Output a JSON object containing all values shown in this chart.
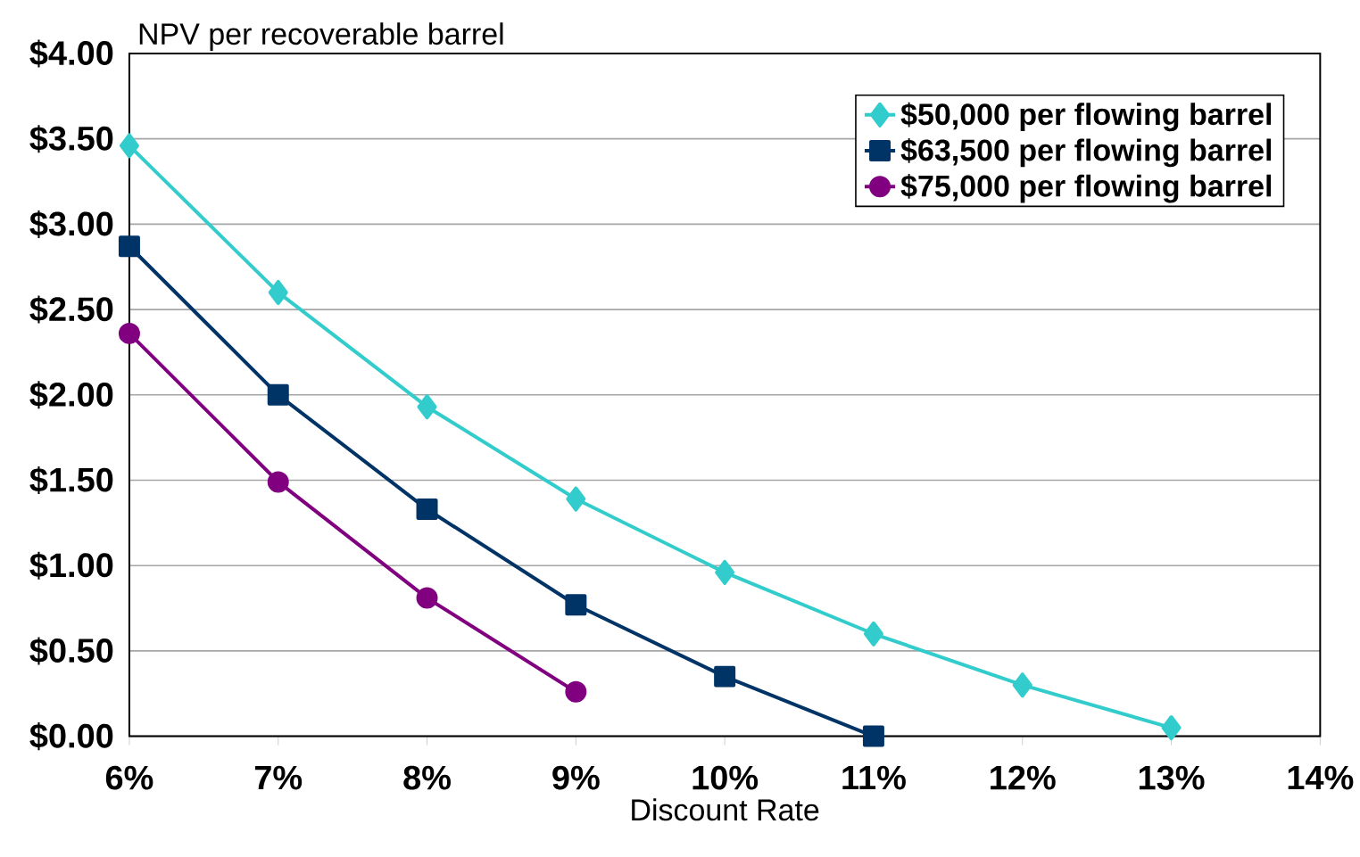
{
  "chart_data": {
    "type": "line",
    "xlabel": "Discount Rate",
    "ylabel": "NPV per recoverable barrel",
    "xlim": [
      6,
      14
    ],
    "ylim": [
      0,
      4
    ],
    "xticks": [
      {
        "value": 6,
        "label": "6%"
      },
      {
        "value": 7,
        "label": "7%"
      },
      {
        "value": 8,
        "label": "8%"
      },
      {
        "value": 9,
        "label": "9%"
      },
      {
        "value": 10,
        "label": "10%"
      },
      {
        "value": 11,
        "label": "11%"
      },
      {
        "value": 12,
        "label": "12%"
      },
      {
        "value": 13,
        "label": "13%"
      },
      {
        "value": 14,
        "label": "14%"
      }
    ],
    "yticks": [
      {
        "value": 0,
        "label": "$0.00"
      },
      {
        "value": 0.5,
        "label": "$0.50"
      },
      {
        "value": 1,
        "label": "$1.00"
      },
      {
        "value": 1.5,
        "label": "$1.50"
      },
      {
        "value": 2,
        "label": "$2.00"
      },
      {
        "value": 2.5,
        "label": "$2.50"
      },
      {
        "value": 3,
        "label": "$3.00"
      },
      {
        "value": 3.5,
        "label": "$3.50"
      },
      {
        "value": 4,
        "label": "$4.00"
      }
    ],
    "grid": "y",
    "legend": "top right",
    "series": [
      {
        "name": "$50,000 per flowing barrel",
        "color": "#33cccc",
        "marker": "diamond",
        "x": [
          6,
          7,
          8,
          9,
          10,
          11,
          12,
          13
        ],
        "values": [
          3.46,
          2.6,
          1.93,
          1.39,
          0.96,
          0.6,
          0.3,
          0.05
        ]
      },
      {
        "name": "$63,500 per flowing barrel",
        "color": "#003366",
        "marker": "square",
        "x": [
          6,
          7,
          8,
          9,
          10,
          11
        ],
        "values": [
          2.87,
          2.0,
          1.33,
          0.77,
          0.35,
          0.0
        ]
      },
      {
        "name": "$75,000 per flowing barrel",
        "color": "#800080",
        "marker": "circle",
        "x": [
          6,
          7,
          8,
          9
        ],
        "values": [
          2.36,
          1.49,
          0.81,
          0.26
        ]
      }
    ]
  }
}
